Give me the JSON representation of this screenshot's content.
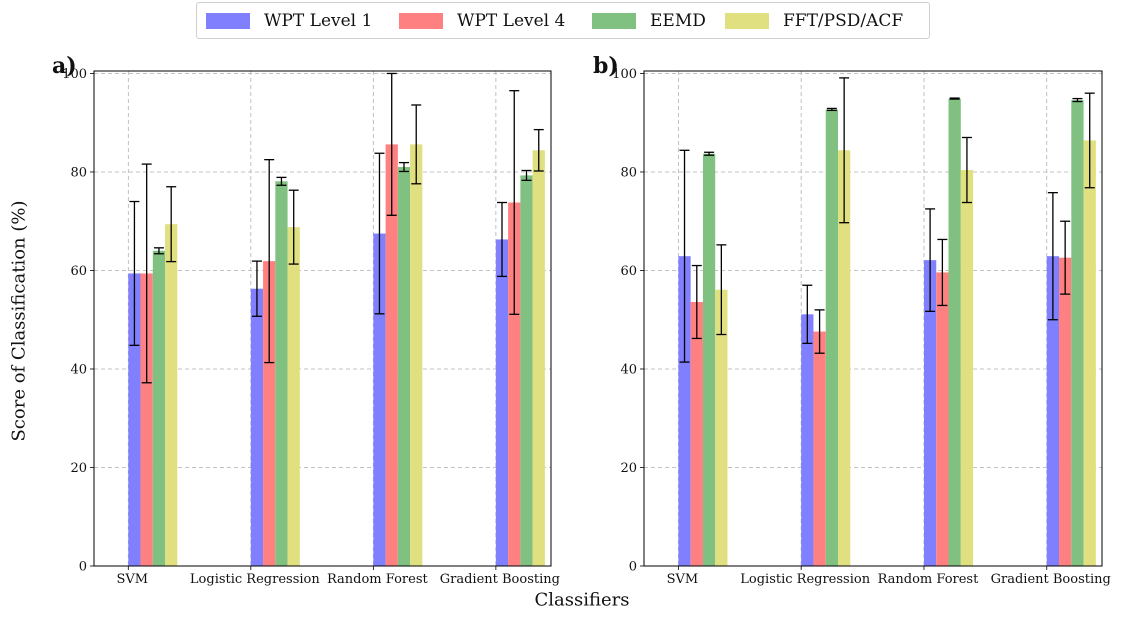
{
  "legend": {
    "items": [
      {
        "label": "WPT Level 1",
        "color": "#8080ff"
      },
      {
        "label": "WPT Level 4",
        "color": "#ff8080"
      },
      {
        "label": "EEMD",
        "color": "#80c080"
      },
      {
        "label": "FFT/PSD/ACF",
        "color": "#e0e080"
      }
    ]
  },
  "axes": {
    "ylabel": "Score of Classification (%)",
    "xlabel": "Classifiers"
  },
  "chart_data": [
    {
      "type": "bar",
      "panel_label": "a)",
      "categories": [
        "SVM",
        "Logistic Regression",
        "Random Forest",
        "Gradient Boosting"
      ],
      "yticks": [
        "0",
        "20",
        "40",
        "60",
        "80",
        "100"
      ],
      "ylim": [
        0,
        100.5
      ],
      "grid": true,
      "series": [
        {
          "name": "WPT Level 1",
          "values": [
            59.4,
            56.3,
            67.5,
            66.3
          ],
          "error": [
            14.6,
            5.6,
            16.3,
            7.5
          ]
        },
        {
          "name": "WPT Level 4",
          "values": [
            59.4,
            61.9,
            85.6,
            73.8
          ],
          "error": [
            22.2,
            20.6,
            14.4,
            22.7
          ]
        },
        {
          "name": "EEMD",
          "values": [
            64.0,
            78.1,
            81.0,
            79.3
          ],
          "error": [
            0.6,
            0.8,
            0.9,
            1.0
          ]
        },
        {
          "name": "FFT/PSD/ACF",
          "values": [
            69.4,
            68.8,
            85.6,
            84.4
          ],
          "error": [
            7.6,
            7.5,
            8.0,
            4.2
          ]
        }
      ]
    },
    {
      "type": "bar",
      "panel_label": "b)",
      "categories": [
        "SVM",
        "Logistic Regression",
        "Random Forest",
        "Gradient Boosting"
      ],
      "yticks": [
        "0",
        "20",
        "40",
        "60",
        "80",
        "100"
      ],
      "ylim": [
        0,
        100.5
      ],
      "grid": true,
      "series": [
        {
          "name": "WPT Level 1",
          "values": [
            62.9,
            51.1,
            62.1,
            62.9
          ],
          "error": [
            21.5,
            5.9,
            10.4,
            12.9
          ]
        },
        {
          "name": "WPT Level 4",
          "values": [
            53.6,
            47.6,
            59.6,
            62.6
          ],
          "error": [
            7.4,
            4.4,
            6.7,
            7.4
          ]
        },
        {
          "name": "EEMD",
          "values": [
            83.7,
            92.7,
            94.9,
            94.6
          ],
          "error": [
            0.3,
            0.2,
            0.1,
            0.3
          ]
        },
        {
          "name": "FFT/PSD/ACF",
          "values": [
            56.1,
            84.4,
            80.4,
            86.4
          ],
          "error": [
            9.1,
            14.7,
            6.6,
            9.6
          ]
        }
      ]
    }
  ]
}
